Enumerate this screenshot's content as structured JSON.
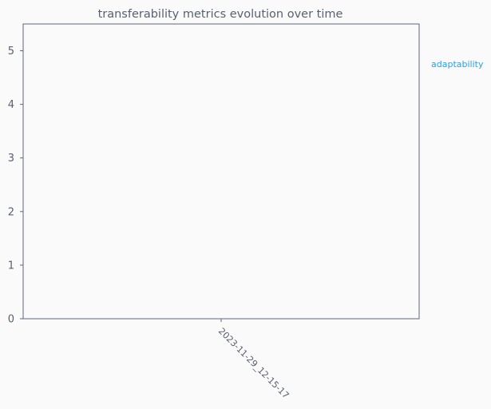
{
  "chart_data": {
    "type": "line",
    "title": "transferability metrics evolution over time",
    "xlabel": "",
    "ylabel": "",
    "categories": [
      "2023-11-29_12-15-17"
    ],
    "series": [
      {
        "name": "adaptability",
        "values": [
          null
        ],
        "color": "#2fa0d7"
      }
    ],
    "ylim": [
      0,
      5.5
    ],
    "yticks": [
      0,
      1,
      2,
      3,
      4,
      5
    ],
    "grid": false,
    "legend_position": "outside-right"
  },
  "colors": {
    "axis": "#5f6577",
    "text": "#59606e",
    "background": "#fafafa"
  }
}
